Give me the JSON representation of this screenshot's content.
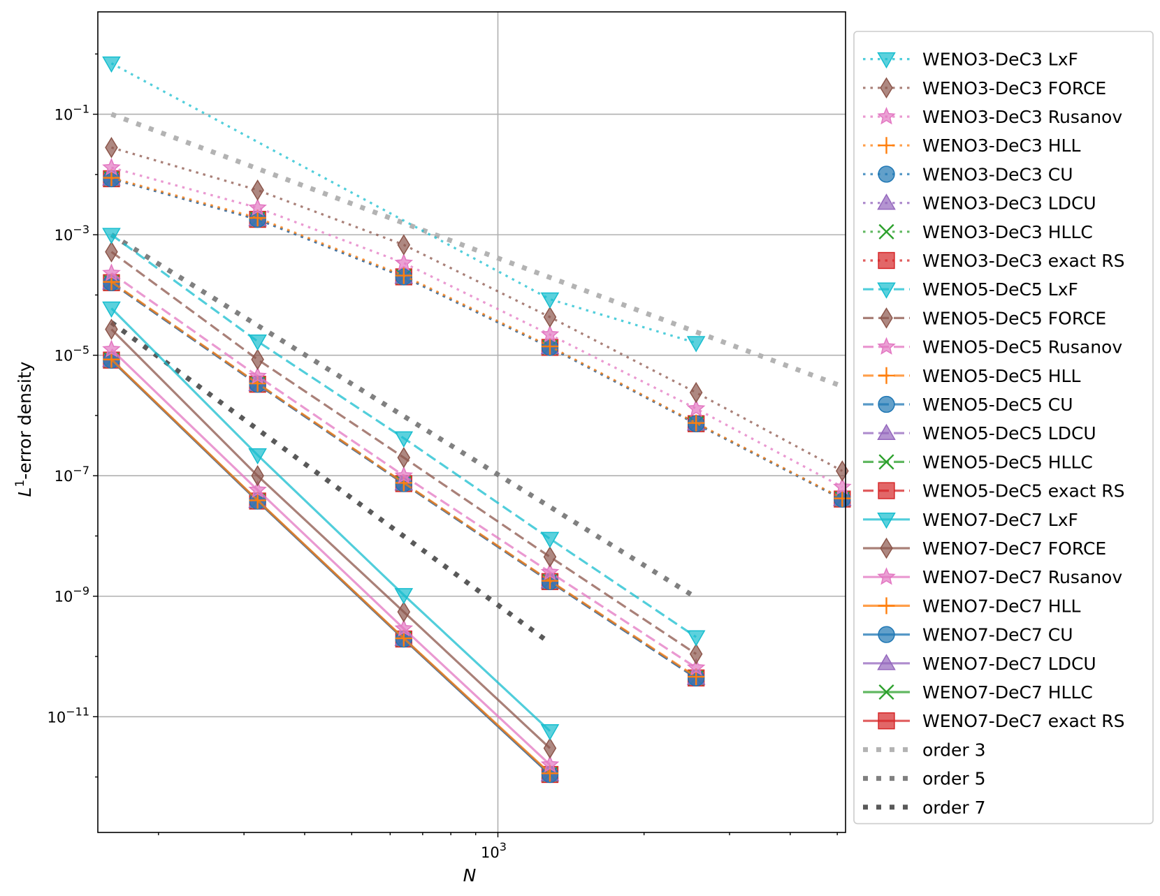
{
  "chart_data": {
    "type": "line",
    "xscale": "log",
    "yscale": "log",
    "xlabel": "N",
    "ylabel": "L1-error density",
    "ylabel_parts": {
      "base": "L",
      "sup": "1",
      "rest": "-error density"
    },
    "xlim": [
      150,
      5200
    ],
    "ylim": [
      1.2e-13,
      5
    ],
    "grid": true,
    "legend_position": "outside-right",
    "x_tick_labels": [
      {
        "value": 1000,
        "base": "10",
        "exp": "3"
      }
    ],
    "y_tick_labels": [
      {
        "value": 0.1,
        "base": "10",
        "exp": "−1"
      },
      {
        "value": 0.001,
        "base": "10",
        "exp": "−3"
      },
      {
        "value": 1e-05,
        "base": "10",
        "exp": "−5"
      },
      {
        "value": 1e-07,
        "base": "10",
        "exp": "−7"
      },
      {
        "value": 1e-09,
        "base": "10",
        "exp": "−9"
      },
      {
        "value": 1e-11,
        "base": "10",
        "exp": "−11"
      }
    ],
    "colors": {
      "LxF": "#17becf",
      "FORCE": "#8c564b",
      "Rusanov": "#e377c2",
      "HLL": "#ff7f0e",
      "CU": "#1f77b4",
      "LDCU": "#9467bd",
      "HLLC": "#2ca02c",
      "exact RS": "#d62728",
      "order3": "#b3b3b3",
      "order5": "#808080",
      "order7": "#595959"
    },
    "series": [
      {
        "name": "WENO3-DeC3 LxF",
        "scheme": "LxF",
        "style": "dotted",
        "marker": "triangle-down",
        "x": [
          160,
          320,
          640,
          1280,
          2560
        ],
        "values": [
          0.7,
          null,
          null,
          8.5e-05,
          1.6e-05
        ]
      },
      {
        "name": "WENO3-DeC3 FORCE",
        "scheme": "FORCE",
        "style": "dotted",
        "marker": "diamond",
        "x": [
          160,
          320,
          640,
          1280,
          2560,
          5120
        ],
        "values": [
          0.028,
          0.0055,
          0.00068,
          4.3e-05,
          2.4e-06,
          1.2e-07
        ]
      },
      {
        "name": "WENO3-DeC3 Rusanov",
        "scheme": "Rusanov",
        "style": "dotted",
        "marker": "star",
        "x": [
          160,
          320,
          640,
          1280,
          2560,
          5120
        ],
        "values": [
          0.013,
          0.0028,
          0.00034,
          2.2e-05,
          1.3e-06,
          6.5e-08
        ]
      },
      {
        "name": "WENO3-DeC3 HLL",
        "scheme": "HLL",
        "style": "dotted",
        "marker": "plus",
        "x": [
          160,
          320,
          640,
          1280,
          2560,
          5120
        ],
        "values": [
          0.0088,
          0.0019,
          0.00021,
          1.4e-05,
          7.5e-07,
          4.2e-08
        ]
      },
      {
        "name": "WENO3-DeC3 CU",
        "scheme": "CU",
        "style": "dotted",
        "marker": "circle",
        "x": [
          160,
          320,
          640,
          1280,
          2560,
          5120
        ],
        "values": [
          0.0085,
          0.0018,
          0.0002,
          1.35e-05,
          7.3e-07,
          4.1e-08
        ]
      },
      {
        "name": "WENO3-DeC3 LDCU",
        "scheme": "LDCU",
        "style": "dotted",
        "marker": "triangle-up",
        "x": [
          160,
          320,
          640,
          1280,
          2560,
          5120
        ],
        "values": [
          0.0085,
          0.0018,
          0.0002,
          1.35e-05,
          7.3e-07,
          4.1e-08
        ]
      },
      {
        "name": "WENO3-DeC3 HLLC",
        "scheme": "HLLC",
        "style": "dotted",
        "marker": "x",
        "x": [
          160,
          320,
          640,
          1280,
          2560,
          5120
        ],
        "values": [
          0.0085,
          0.0018,
          0.0002,
          1.35e-05,
          7.3e-07,
          4.1e-08
        ]
      },
      {
        "name": "WENO3-DeC3 exact RS",
        "scheme": "exact RS",
        "style": "dotted",
        "marker": "square",
        "x": [
          160,
          320,
          640,
          1280,
          2560,
          5120
        ],
        "values": [
          0.0085,
          0.0018,
          0.0002,
          1.35e-05,
          7.3e-07,
          4.1e-08
        ]
      },
      {
        "name": "WENO5-DeC5 LxF",
        "scheme": "LxF",
        "style": "dashed",
        "marker": "triangle-down",
        "x": [
          160,
          320,
          640,
          1280,
          2560
        ],
        "values": [
          0.001,
          1.7e-05,
          4.2e-07,
          9e-09,
          2.1e-10
        ]
      },
      {
        "name": "WENO5-DeC5 FORCE",
        "scheme": "FORCE",
        "style": "dashed",
        "marker": "diamond",
        "x": [
          160,
          320,
          640,
          1280,
          2560
        ],
        "values": [
          0.00052,
          8.5e-06,
          2e-07,
          4.5e-09,
          1.1e-10
        ]
      },
      {
        "name": "WENO5-DeC5 Rusanov",
        "scheme": "Rusanov",
        "style": "dashed",
        "marker": "star",
        "x": [
          160,
          320,
          640,
          1280,
          2560
        ],
        "values": [
          0.00023,
          4.5e-06,
          1e-07,
          2.5e-09,
          6.5e-11
        ]
      },
      {
        "name": "WENO5-DeC5 HLL",
        "scheme": "HLL",
        "style": "dashed",
        "marker": "plus",
        "x": [
          160,
          320,
          640,
          1280,
          2560
        ],
        "values": [
          0.000165,
          3.4e-06,
          7.6e-08,
          1.8e-09,
          4.6e-11
        ]
      },
      {
        "name": "WENO5-DeC5 CU",
        "scheme": "CU",
        "style": "dashed",
        "marker": "circle",
        "x": [
          160,
          320,
          640,
          1280,
          2560
        ],
        "values": [
          0.00016,
          3.3e-06,
          7.4e-08,
          1.75e-09,
          4.4e-11
        ]
      },
      {
        "name": "WENO5-DeC5 LDCU",
        "scheme": "LDCU",
        "style": "dashed",
        "marker": "triangle-up",
        "x": [
          160,
          320,
          640,
          1280,
          2560
        ],
        "values": [
          0.00016,
          3.3e-06,
          7.4e-08,
          1.75e-09,
          4.4e-11
        ]
      },
      {
        "name": "WENO5-DeC5 HLLC",
        "scheme": "HLLC",
        "style": "dashed",
        "marker": "x",
        "x": [
          160,
          320,
          640,
          1280,
          2560
        ],
        "values": [
          0.00016,
          3.3e-06,
          7.4e-08,
          1.75e-09,
          4.4e-11
        ]
      },
      {
        "name": "WENO5-DeC5 exact RS",
        "scheme": "exact RS",
        "style": "dashed",
        "marker": "square",
        "x": [
          160,
          320,
          640,
          1280,
          2560
        ],
        "values": [
          0.00016,
          3.3e-06,
          7.4e-08,
          1.75e-09,
          4.4e-11
        ]
      },
      {
        "name": "WENO7-DeC7 LxF",
        "scheme": "LxF",
        "style": "solid",
        "marker": "triangle-down",
        "x": [
          160,
          320,
          640,
          1280
        ],
        "values": [
          6e-05,
          2.2e-07,
          1.05e-09,
          5.8e-12
        ]
      },
      {
        "name": "WENO7-DeC7 FORCE",
        "scheme": "FORCE",
        "style": "solid",
        "marker": "diamond",
        "x": [
          160,
          320,
          640,
          1280
        ],
        "values": [
          2.7e-05,
          1e-07,
          5.5e-10,
          3e-12
        ]
      },
      {
        "name": "WENO7-DeC7 Rusanov",
        "scheme": "Rusanov",
        "style": "solid",
        "marker": "star",
        "x": [
          160,
          320,
          640,
          1280
        ],
        "values": [
          1.25e-05,
          5.8e-08,
          2.9e-10,
          1.6e-12
        ]
      },
      {
        "name": "WENO7-DeC7 HLL",
        "scheme": "HLL",
        "style": "solid",
        "marker": "plus",
        "x": [
          160,
          320,
          640,
          1280
        ],
        "values": [
          8.5e-06,
          3.9e-08,
          2e-10,
          1.15e-12
        ]
      },
      {
        "name": "WENO7-DeC7 CU",
        "scheme": "CU",
        "style": "solid",
        "marker": "circle",
        "x": [
          160,
          320,
          640,
          1280
        ],
        "values": [
          8.3e-06,
          3.8e-08,
          1.95e-10,
          1.1e-12
        ]
      },
      {
        "name": "WENO7-DeC7 LDCU",
        "scheme": "LDCU",
        "style": "solid",
        "marker": "triangle-up",
        "x": [
          160,
          320,
          640,
          1280
        ],
        "values": [
          8.3e-06,
          3.8e-08,
          1.95e-10,
          1.1e-12
        ]
      },
      {
        "name": "WENO7-DeC7 HLLC",
        "scheme": "HLLC",
        "style": "solid",
        "marker": "x",
        "x": [
          160,
          320,
          640,
          1280
        ],
        "values": [
          8.3e-06,
          3.8e-08,
          1.95e-10,
          1.1e-12
        ]
      },
      {
        "name": "WENO7-DeC7 exact RS",
        "scheme": "exact RS",
        "style": "solid",
        "marker": "square",
        "x": [
          160,
          320,
          640,
          1280
        ],
        "values": [
          8.3e-06,
          3.8e-08,
          1.95e-10,
          1.1e-12
        ]
      }
    ],
    "reference_lines": [
      {
        "name": "order 3",
        "color_key": "order3",
        "x": [
          160,
          5120
        ],
        "values": [
          0.1,
          3.05e-06
        ]
      },
      {
        "name": "order 5",
        "color_key": "order5",
        "x": [
          160,
          2560
        ],
        "values": [
          0.001,
          9.5e-10
        ]
      },
      {
        "name": "order 7",
        "color_key": "order7",
        "x": [
          160,
          1280
        ],
        "values": [
          3.5e-05,
          1.67e-10
        ]
      }
    ]
  }
}
